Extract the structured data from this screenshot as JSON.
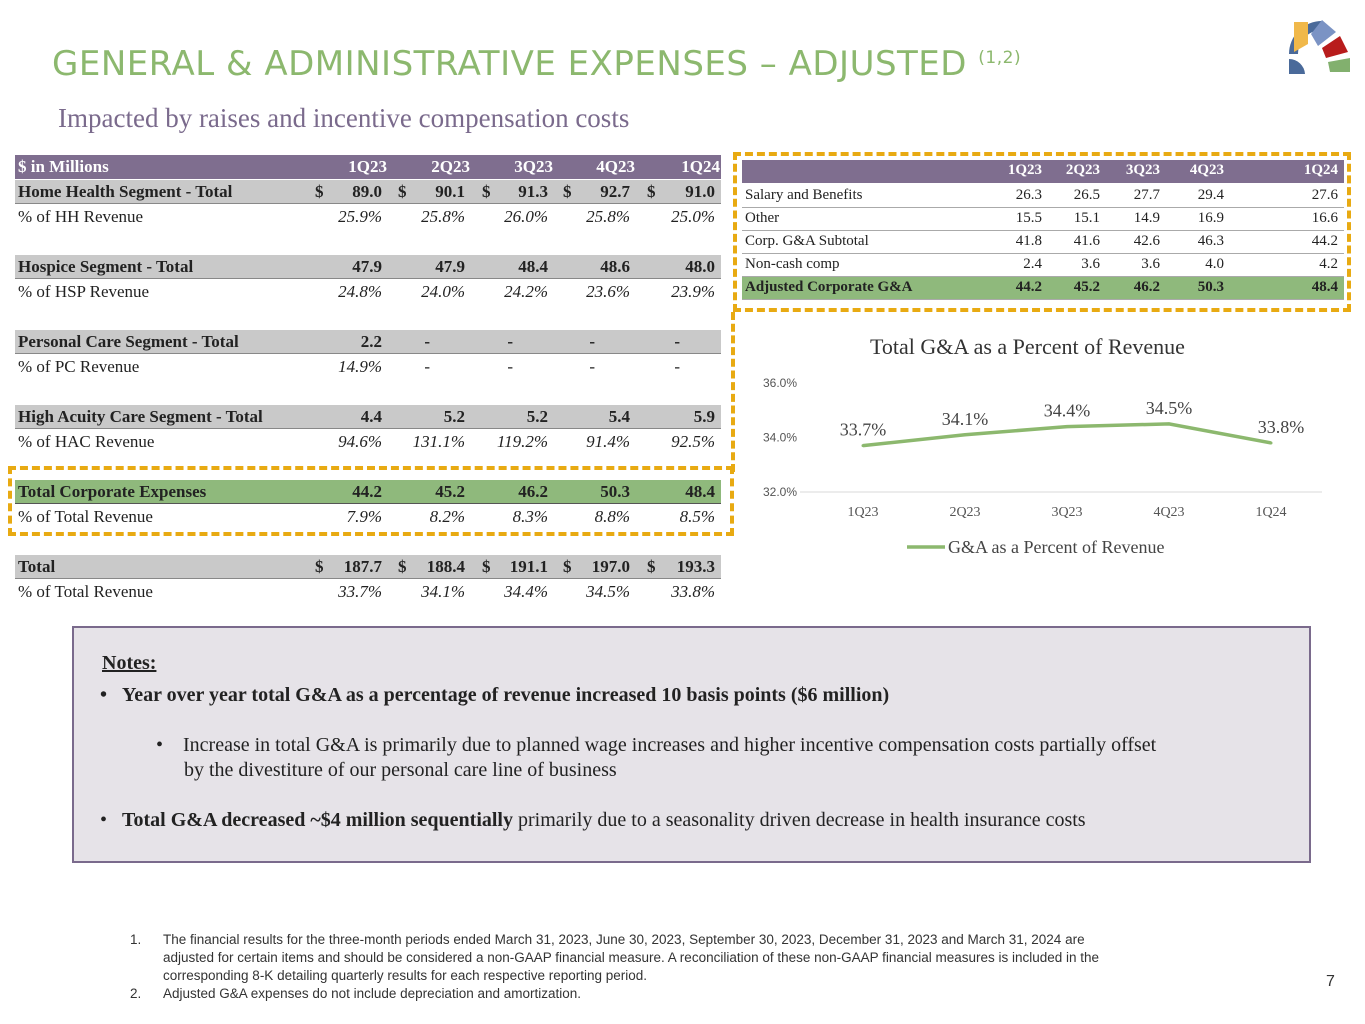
{
  "title": "GENERAL & ADMINISTRATIVE EXPENSES – ADJUSTED",
  "title_sup": "(1,2)",
  "subtitle": "Impacted by raises and incentive compensation costs",
  "logo": "company-fan-logo",
  "colors": {
    "title": "#8cb86e",
    "header": "#7f6e8f",
    "segment": "#c9c9c9",
    "corporate": "#8fb97c",
    "highlight_dash": "#e8aa12",
    "line": "#8cb86e"
  },
  "left_table": {
    "header": [
      "$ in Millions",
      "1Q23",
      "2Q23",
      "3Q23",
      "4Q23",
      "1Q24"
    ],
    "rows": [
      {
        "type": "seg",
        "label": "Home Health Segment - Total",
        "dollar": true,
        "values": [
          "89.0",
          "90.1",
          "91.3",
          "92.7",
          "91.0"
        ]
      },
      {
        "type": "pct",
        "label": "% of HH Revenue",
        "values": [
          "25.9%",
          "25.8%",
          "26.0%",
          "25.8%",
          "25.0%"
        ]
      },
      {
        "type": "seg",
        "label": "Hospice Segment - Total",
        "values": [
          "47.9",
          "47.9",
          "48.4",
          "48.6",
          "48.0"
        ]
      },
      {
        "type": "pct",
        "label": "% of HSP Revenue",
        "values": [
          "24.8%",
          "24.0%",
          "24.2%",
          "23.6%",
          "23.9%"
        ]
      },
      {
        "type": "seg",
        "label": "Personal Care Segment - Total",
        "values": [
          "2.2",
          "-",
          "-",
          "-",
          "-"
        ]
      },
      {
        "type": "pct",
        "label": "% of PC Revenue",
        "values": [
          "14.9%",
          "-",
          "-",
          "-",
          "-"
        ]
      },
      {
        "type": "seg",
        "label": "High Acuity Care Segment - Total",
        "values": [
          "4.4",
          "5.2",
          "5.2",
          "5.4",
          "5.9"
        ]
      },
      {
        "type": "pct",
        "label": "% of HAC Revenue",
        "values": [
          "94.6%",
          "131.1%",
          "119.2%",
          "91.4%",
          "92.5%"
        ]
      },
      {
        "type": "corp",
        "label": "Total Corporate Expenses",
        "values": [
          "44.2",
          "45.2",
          "46.2",
          "50.3",
          "48.4"
        ]
      },
      {
        "type": "pct",
        "label": "% of Total Revenue",
        "values": [
          "7.9%",
          "8.2%",
          "8.3%",
          "8.8%",
          "8.5%"
        ]
      },
      {
        "type": "seg",
        "label": "Total",
        "dollar": true,
        "values": [
          "187.7",
          "188.4",
          "191.1",
          "197.0",
          "193.3"
        ]
      },
      {
        "type": "pct",
        "label": "% of Total Revenue",
        "values": [
          "33.7%",
          "34.1%",
          "34.4%",
          "34.5%",
          "33.8%"
        ]
      }
    ]
  },
  "right_table": {
    "header": [
      "1Q23",
      "2Q23",
      "3Q23",
      "4Q23",
      "1Q24"
    ],
    "rows": [
      {
        "label": "Salary and Benefits",
        "values": [
          "26.3",
          "26.5",
          "27.7",
          "29.4",
          "27.6"
        ]
      },
      {
        "label": "Other",
        "values": [
          "15.5",
          "15.1",
          "14.9",
          "16.9",
          "16.6"
        ]
      },
      {
        "label": "Corp. G&A Subtotal",
        "values": [
          "41.8",
          "41.6",
          "42.6",
          "46.3",
          "44.2"
        ]
      },
      {
        "label": "Non-cash comp",
        "values": [
          "2.4",
          "3.6",
          "3.6",
          "4.0",
          "4.2"
        ]
      },
      {
        "label": "Adjusted Corporate G&A",
        "bold": true,
        "values": [
          "44.2",
          "45.2",
          "46.2",
          "50.3",
          "48.4"
        ]
      }
    ]
  },
  "chart_data": {
    "type": "line",
    "title": "Total G&A as a Percent of Revenue",
    "categories": [
      "1Q23",
      "2Q23",
      "3Q23",
      "4Q23",
      "1Q24"
    ],
    "series": [
      {
        "name": "G&A as a Percent of Revenue",
        "values": [
          33.7,
          34.1,
          34.4,
          34.5,
          33.8
        ],
        "labels": [
          "33.7%",
          "34.1%",
          "34.4%",
          "34.5%",
          "33.8%"
        ]
      }
    ],
    "yticks": [
      "32.0%",
      "34.0%",
      "36.0%"
    ],
    "ylim": [
      32,
      36
    ],
    "grid": false,
    "legend": "bottom"
  },
  "notes": {
    "heading": "Notes:",
    "b1": "Year over year total G&A as a percentage of revenue increased 10 basis points ($6 million)",
    "b1a_l1": "Increase in total G&A is primarily due to planned wage increases and higher incentive compensation costs partially offset",
    "b1a_l2": "by the divestiture of our personal care line of business",
    "b2_bold": "Total G&A decreased ~$4 million sequentially",
    "b2_rest": " primarily due to a seasonality driven decrease in health insurance costs"
  },
  "footnotes": [
    {
      "num": "1.",
      "lines": [
        "The financial results for the three-month periods ended March 31, 2023, June 30, 2023, September 30, 2023, December 31, 2023 and March 31, 2024 are",
        "adjusted for certain items and should be considered a non-GAAP financial measure. A reconciliation of these non-GAAP financial measures is included in the",
        "corresponding 8-K detailing quarterly results for each respective reporting period."
      ]
    },
    {
      "num": "2.",
      "lines": [
        "Adjusted G&A expenses do not include depreciation and amortization."
      ]
    }
  ],
  "page_number": "7"
}
